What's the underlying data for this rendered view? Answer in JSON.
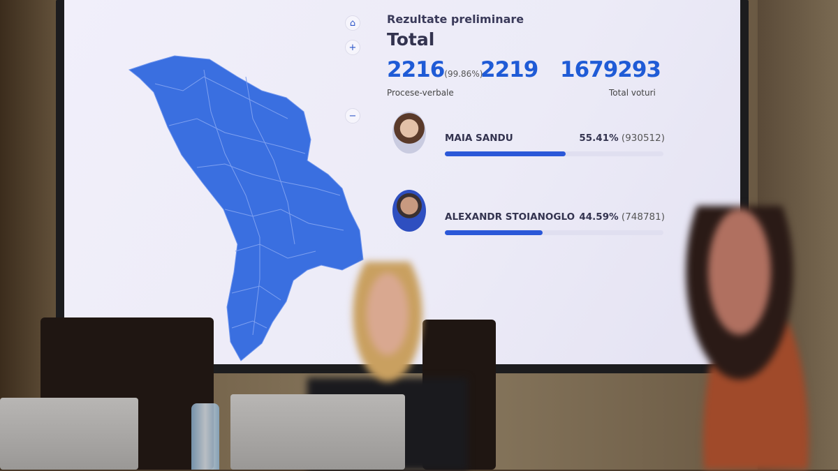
{
  "screen": {
    "subtitle": "Rezultate preliminare",
    "title": "Total",
    "reported": "2216",
    "reported_pct": "(99.86%)",
    "total_reports": "2219",
    "total_votes": "1679293",
    "reports_label": "Procese-verbale",
    "votes_label": "Total voturi",
    "map_controls": [
      "home-icon",
      "plus-icon",
      "minus-icon"
    ],
    "map_color": "#3a6fe0",
    "candidates": [
      {
        "name": "MAIA SANDU",
        "percent": "55.41%",
        "votes": "(930512)",
        "share": 55.41
      },
      {
        "name": "ALEXANDR STOIANOGLO",
        "percent": "44.59%",
        "votes": "(748781)",
        "share": 44.59
      }
    ]
  }
}
